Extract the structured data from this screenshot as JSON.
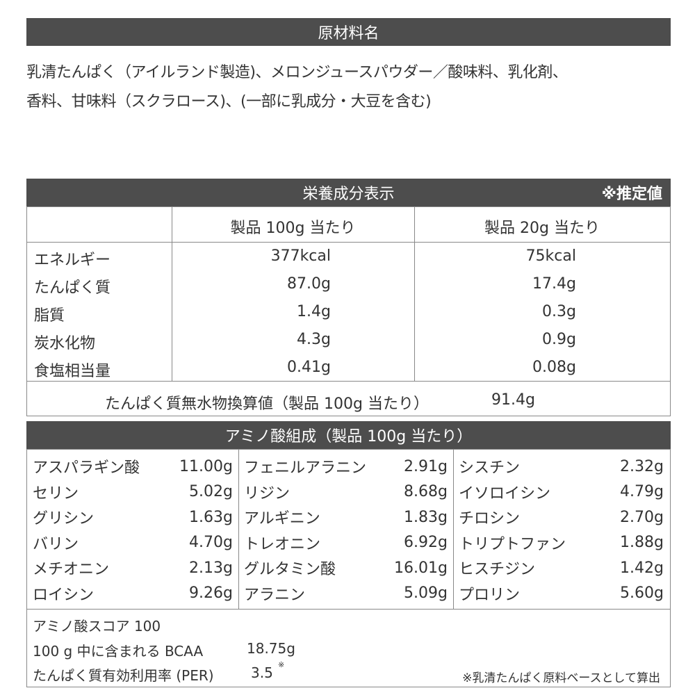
{
  "ingredients": {
    "title": "原材料名",
    "lines": [
      "乳清たんぱく（アイルランド製造)、メロンジュースパウダー／酸味料、乳化剤、",
      "香料、甘味料（スクラロース)、(一部に乳成分・大豆を含む)"
    ]
  },
  "nutrition": {
    "title": "栄養成分表示",
    "note": "※推定値",
    "col1": "製品 100g 当たり",
    "col2": "製品 20g 当たり",
    "rows": [
      {
        "label": "エネルギー",
        "v1": "377kcal",
        "v2": "75kcal"
      },
      {
        "label": "たんぱく質",
        "v1": "87.0g",
        "v2": "17.4g"
      },
      {
        "label": "脂質",
        "v1": "1.4g",
        "v2": "0.3g"
      },
      {
        "label": "炭水化物",
        "v1": "4.3g",
        "v2": "0.9g"
      },
      {
        "label": "食塩相当量",
        "v1": "0.41g",
        "v2": "0.08g"
      }
    ],
    "anhydrous_label": "たんぱく質無水物換算値（製品 100g 当たり）",
    "anhydrous_value": "91.4g"
  },
  "amino": {
    "title": "アミノ酸組成（製品 100g 当たり）",
    "columns": [
      [
        {
          "n": "アスパラギン酸",
          "v": "11.00g"
        },
        {
          "n": "セリン",
          "v": "5.02g"
        },
        {
          "n": "グリシン",
          "v": "1.63g"
        },
        {
          "n": "バリン",
          "v": "4.70g"
        },
        {
          "n": "メチオニン",
          "v": "2.13g"
        },
        {
          "n": "ロイシン",
          "v": "9.26g"
        }
      ],
      [
        {
          "n": "フェニルアラニン",
          "v": "2.91g"
        },
        {
          "n": "リジン",
          "v": "8.68g"
        },
        {
          "n": "アルギニン",
          "v": "1.83g"
        },
        {
          "n": "トレオニン",
          "v": "6.92g"
        },
        {
          "n": "グルタミン酸",
          "v": "16.01g"
        },
        {
          "n": "アラニン",
          "v": "5.09g"
        }
      ],
      [
        {
          "n": "シスチン",
          "v": "2.32g"
        },
        {
          "n": "イソロイシン",
          "v": "4.79g"
        },
        {
          "n": "チロシン",
          "v": "2.70g"
        },
        {
          "n": "トリプトファン",
          "v": "1.88g"
        },
        {
          "n": "ヒスチジン",
          "v": "1.42g"
        },
        {
          "n": "プロリン",
          "v": "5.60g"
        }
      ]
    ]
  },
  "footer": {
    "score": "アミノ酸スコア 100",
    "bcaa_label": "100 g 中に含まれる BCAA",
    "bcaa_value": "18.75g",
    "per_label": "たんぱく質有効利用率 (PER)",
    "per_value": "3.5",
    "per_mark": "※",
    "footnote": "※乳清たんぱく原料ベースとして算出"
  }
}
